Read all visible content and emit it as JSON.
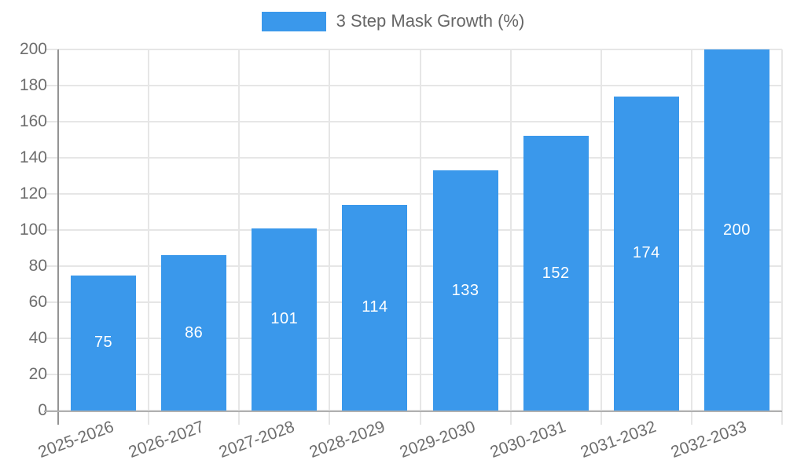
{
  "chart_data": {
    "type": "bar",
    "title": "3 Step Mask Growth (%)",
    "categories": [
      "2025-2026",
      "2026-2027",
      "2027-2028",
      "2028-2029",
      "2029-2030",
      "2030-2031",
      "2031-2032",
      "2032-2033"
    ],
    "values": [
      75,
      86,
      101,
      114,
      133,
      152,
      174,
      200
    ],
    "ylim": [
      0,
      200
    ],
    "ytick_step": 20,
    "grid": true,
    "legend_position": "top",
    "bar_color": "#3A98EB",
    "bar_label_color": "#FFFFFF",
    "axis_text_color": "#6E6E6E",
    "gridline_color": "#E6E6E6",
    "y_axis_line_color": "#949494",
    "x_axis_line_color": "#B0B0B0"
  }
}
